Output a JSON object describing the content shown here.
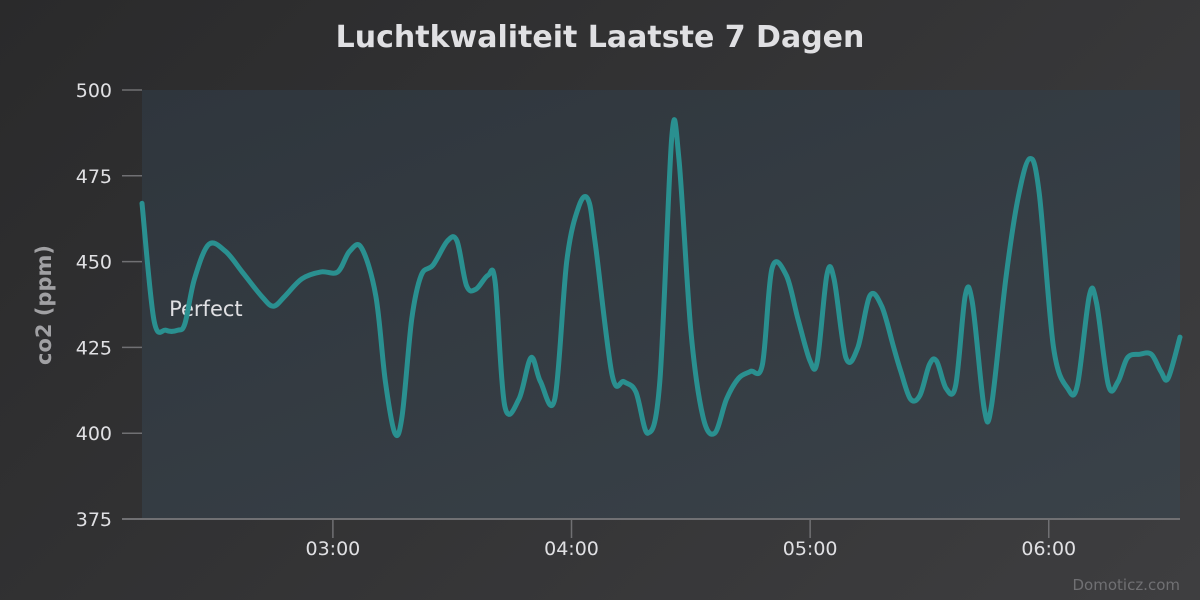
{
  "chart_data": {
    "type": "line",
    "title": "Luchtkwaliteit Laatste 7 Dagen",
    "xlabel": "",
    "ylabel": "co2 (ppm)",
    "ylim": [
      375,
      500
    ],
    "y_ticks": [
      375,
      400,
      425,
      450,
      475,
      500
    ],
    "x_ticks": [
      {
        "label": "03:00",
        "hour": 3.0
      },
      {
        "label": "04:00",
        "hour": 4.0
      },
      {
        "label": "05:00",
        "hour": 5.0
      },
      {
        "label": "06:00",
        "hour": 6.0
      }
    ],
    "xlim_hours": [
      2.2,
      6.55
    ],
    "band_label": {
      "text": "Perfect",
      "hour": 2.28,
      "value": 435
    },
    "series": [
      {
        "color": "#2a9090",
        "points": [
          [
            2.2,
            467
          ],
          [
            2.25,
            433
          ],
          [
            2.3,
            430
          ],
          [
            2.35,
            430
          ],
          [
            2.38,
            432
          ],
          [
            2.42,
            445
          ],
          [
            2.48,
            455
          ],
          [
            2.55,
            453
          ],
          [
            2.62,
            447
          ],
          [
            2.7,
            440
          ],
          [
            2.75,
            437
          ],
          [
            2.8,
            440
          ],
          [
            2.87,
            445
          ],
          [
            2.95,
            447
          ],
          [
            3.02,
            447
          ],
          [
            3.07,
            453
          ],
          [
            3.12,
            454
          ],
          [
            3.18,
            440
          ],
          [
            3.22,
            415
          ],
          [
            3.26,
            400
          ],
          [
            3.29,
            405
          ],
          [
            3.33,
            433
          ],
          [
            3.37,
            446
          ],
          [
            3.42,
            449
          ],
          [
            3.48,
            456
          ],
          [
            3.52,
            456
          ],
          [
            3.56,
            443
          ],
          [
            3.6,
            442
          ],
          [
            3.65,
            446
          ],
          [
            3.68,
            444
          ],
          [
            3.72,
            408
          ],
          [
            3.78,
            410
          ],
          [
            3.83,
            422
          ],
          [
            3.87,
            415
          ],
          [
            3.93,
            410
          ],
          [
            3.98,
            450
          ],
          [
            4.03,
            466
          ],
          [
            4.07,
            468
          ],
          [
            4.1,
            455
          ],
          [
            4.17,
            417
          ],
          [
            4.22,
            415
          ],
          [
            4.27,
            412
          ],
          [
            4.32,
            400
          ],
          [
            4.37,
            415
          ],
          [
            4.42,
            486
          ],
          [
            4.45,
            480
          ],
          [
            4.5,
            430
          ],
          [
            4.55,
            405
          ],
          [
            4.6,
            400
          ],
          [
            4.65,
            410
          ],
          [
            4.7,
            416
          ],
          [
            4.75,
            418
          ],
          [
            4.8,
            420
          ],
          [
            4.84,
            448
          ],
          [
            4.9,
            446
          ],
          [
            4.95,
            433
          ],
          [
            5.0,
            421
          ],
          [
            5.03,
            421
          ],
          [
            5.07,
            446
          ],
          [
            5.1,
            445
          ],
          [
            5.15,
            422
          ],
          [
            5.2,
            425
          ],
          [
            5.25,
            440
          ],
          [
            5.3,
            437
          ],
          [
            5.35,
            425
          ],
          [
            5.38,
            418
          ],
          [
            5.42,
            410
          ],
          [
            5.46,
            411
          ],
          [
            5.5,
            420
          ],
          [
            5.53,
            421
          ],
          [
            5.57,
            413
          ],
          [
            5.61,
            414
          ],
          [
            5.65,
            440
          ],
          [
            5.68,
            438
          ],
          [
            5.73,
            407
          ],
          [
            5.76,
            408
          ],
          [
            5.82,
            445
          ],
          [
            5.87,
            468
          ],
          [
            5.92,
            480
          ],
          [
            5.96,
            470
          ],
          [
            6.02,
            425
          ],
          [
            6.08,
            413
          ],
          [
            6.12,
            414
          ],
          [
            6.17,
            440
          ],
          [
            6.2,
            438
          ],
          [
            6.25,
            414
          ],
          [
            6.29,
            415
          ],
          [
            6.33,
            422
          ],
          [
            6.38,
            423
          ],
          [
            6.43,
            423
          ],
          [
            6.47,
            418
          ],
          [
            6.5,
            416
          ],
          [
            6.55,
            428
          ]
        ]
      }
    ],
    "grid": false,
    "legend": "none",
    "credits": "Domoticz.com",
    "colors": {
      "plot_bg": "#333b42",
      "line": "#2a9090",
      "text": "#e0e0e3",
      "axis_label": "#a0a0a3",
      "axis_line": "#707073",
      "credits": "#707073"
    }
  }
}
